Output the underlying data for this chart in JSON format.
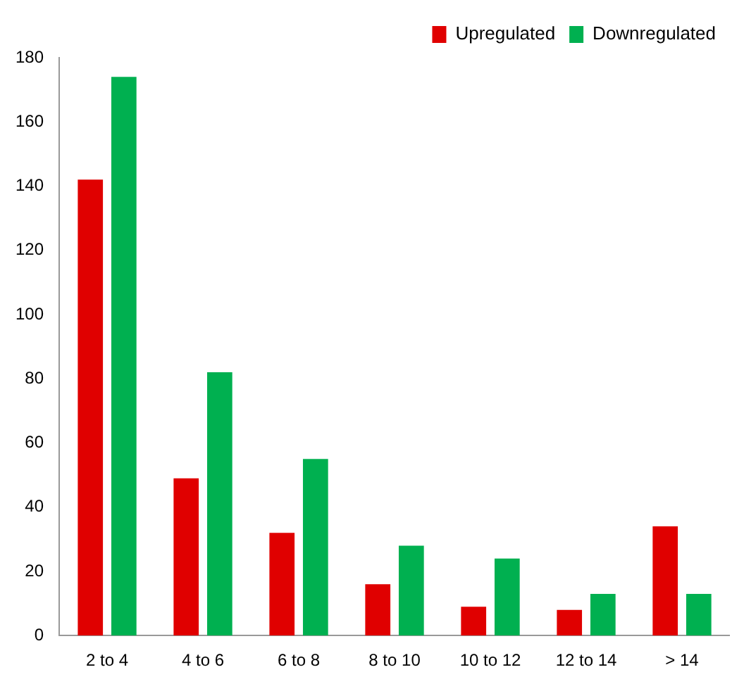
{
  "chart_data": {
    "type": "bar",
    "categories": [
      "2 to 4",
      "4 to 6",
      "6 to 8",
      "8 to 10",
      "10 to 12",
      "12 to 14",
      "> 14"
    ],
    "series": [
      {
        "name": "Upregulated",
        "color": "#e00000",
        "values": [
          142,
          49,
          32,
          16,
          9,
          8,
          34
        ]
      },
      {
        "name": "Downregulated",
        "color": "#00b050",
        "values": [
          174,
          82,
          55,
          28,
          24,
          13,
          13
        ]
      }
    ],
    "ylim": [
      0,
      180
    ],
    "yticks": [
      0,
      20,
      40,
      60,
      80,
      100,
      120,
      140,
      160,
      180
    ],
    "grid": false,
    "legend": "top right"
  }
}
